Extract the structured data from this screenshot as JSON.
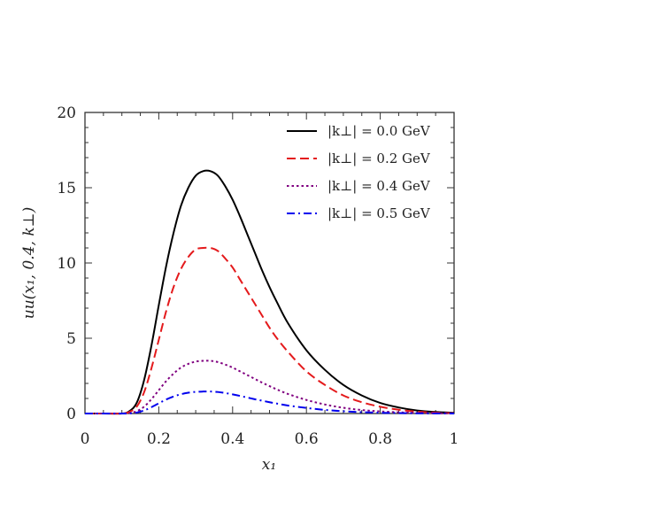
{
  "chart_data": {
    "type": "line",
    "title": "",
    "xlabel": "x₁",
    "ylabel": "uu(x₁, 0.4, k⊥)",
    "xlim": [
      0,
      1
    ],
    "ylim": [
      0,
      20
    ],
    "xticks": [
      {
        "value": 0,
        "label": "0"
      },
      {
        "value": 0.2,
        "label": "0.2"
      },
      {
        "value": 0.4,
        "label": "0.4"
      },
      {
        "value": 0.6,
        "label": "0.6"
      },
      {
        "value": 0.8,
        "label": "0.8"
      },
      {
        "value": 1,
        "label": "1"
      }
    ],
    "yticks": [
      {
        "value": 0,
        "label": "0"
      },
      {
        "value": 5,
        "label": "5"
      },
      {
        "value": 10,
        "label": "10"
      },
      {
        "value": 15,
        "label": "15"
      },
      {
        "value": 20,
        "label": "20"
      }
    ],
    "grid": false,
    "legend_position": "top-right",
    "x": [
      0,
      0.05,
      0.1,
      0.12,
      0.14,
      0.16,
      0.18,
      0.2,
      0.22,
      0.24,
      0.26,
      0.28,
      0.3,
      0.32,
      0.34,
      0.36,
      0.38,
      0.4,
      0.42,
      0.44,
      0.46,
      0.48,
      0.5,
      0.52,
      0.55,
      0.6,
      0.65,
      0.7,
      0.75,
      0.8,
      0.85,
      0.9,
      0.95,
      1
    ],
    "series": [
      {
        "name": "|k⊥| = 0.0 GeV",
        "color": "#000000",
        "dash": "solid",
        "values": [
          0,
          0,
          0,
          0.15,
          0.7,
          2.2,
          4.5,
          7.2,
          9.8,
          12.0,
          13.8,
          15.0,
          15.8,
          16.1,
          16.1,
          15.8,
          15.1,
          14.2,
          13.1,
          11.9,
          10.7,
          9.5,
          8.4,
          7.4,
          6.0,
          4.2,
          2.9,
          1.9,
          1.2,
          0.7,
          0.4,
          0.2,
          0.1,
          0.05
        ]
      },
      {
        "name": "|k⊥| = 0.2 GeV",
        "color": "#e41a1c",
        "dash": "dashed",
        "values": [
          0,
          0,
          0,
          0.1,
          0.45,
          1.4,
          3.0,
          4.9,
          6.8,
          8.4,
          9.6,
          10.4,
          10.9,
          11.0,
          11.0,
          10.8,
          10.3,
          9.7,
          8.9,
          8.1,
          7.3,
          6.5,
          5.7,
          5.0,
          4.1,
          2.8,
          1.9,
          1.2,
          0.75,
          0.45,
          0.25,
          0.12,
          0.06,
          0.02
        ]
      },
      {
        "name": "|k⊥| = 0.4 GeV",
        "color": "#800080",
        "dash": "dotted",
        "values": [
          0,
          0,
          0,
          0.03,
          0.15,
          0.45,
          0.95,
          1.55,
          2.15,
          2.65,
          3.05,
          3.3,
          3.45,
          3.5,
          3.5,
          3.42,
          3.25,
          3.05,
          2.8,
          2.55,
          2.3,
          2.05,
          1.82,
          1.6,
          1.3,
          0.9,
          0.6,
          0.38,
          0.23,
          0.14,
          0.08,
          0.04,
          0.02,
          0.01
        ]
      },
      {
        "name": "|k⊥| = 0.5 GeV",
        "color": "#0000ee",
        "dash": "dashdot",
        "values": [
          0,
          0,
          0,
          0.01,
          0.06,
          0.2,
          0.42,
          0.68,
          0.93,
          1.13,
          1.28,
          1.38,
          1.44,
          1.46,
          1.46,
          1.43,
          1.36,
          1.27,
          1.17,
          1.06,
          0.95,
          0.85,
          0.75,
          0.66,
          0.53,
          0.37,
          0.24,
          0.15,
          0.09,
          0.05,
          0.03,
          0.015,
          0.008,
          0.003
        ]
      }
    ]
  }
}
